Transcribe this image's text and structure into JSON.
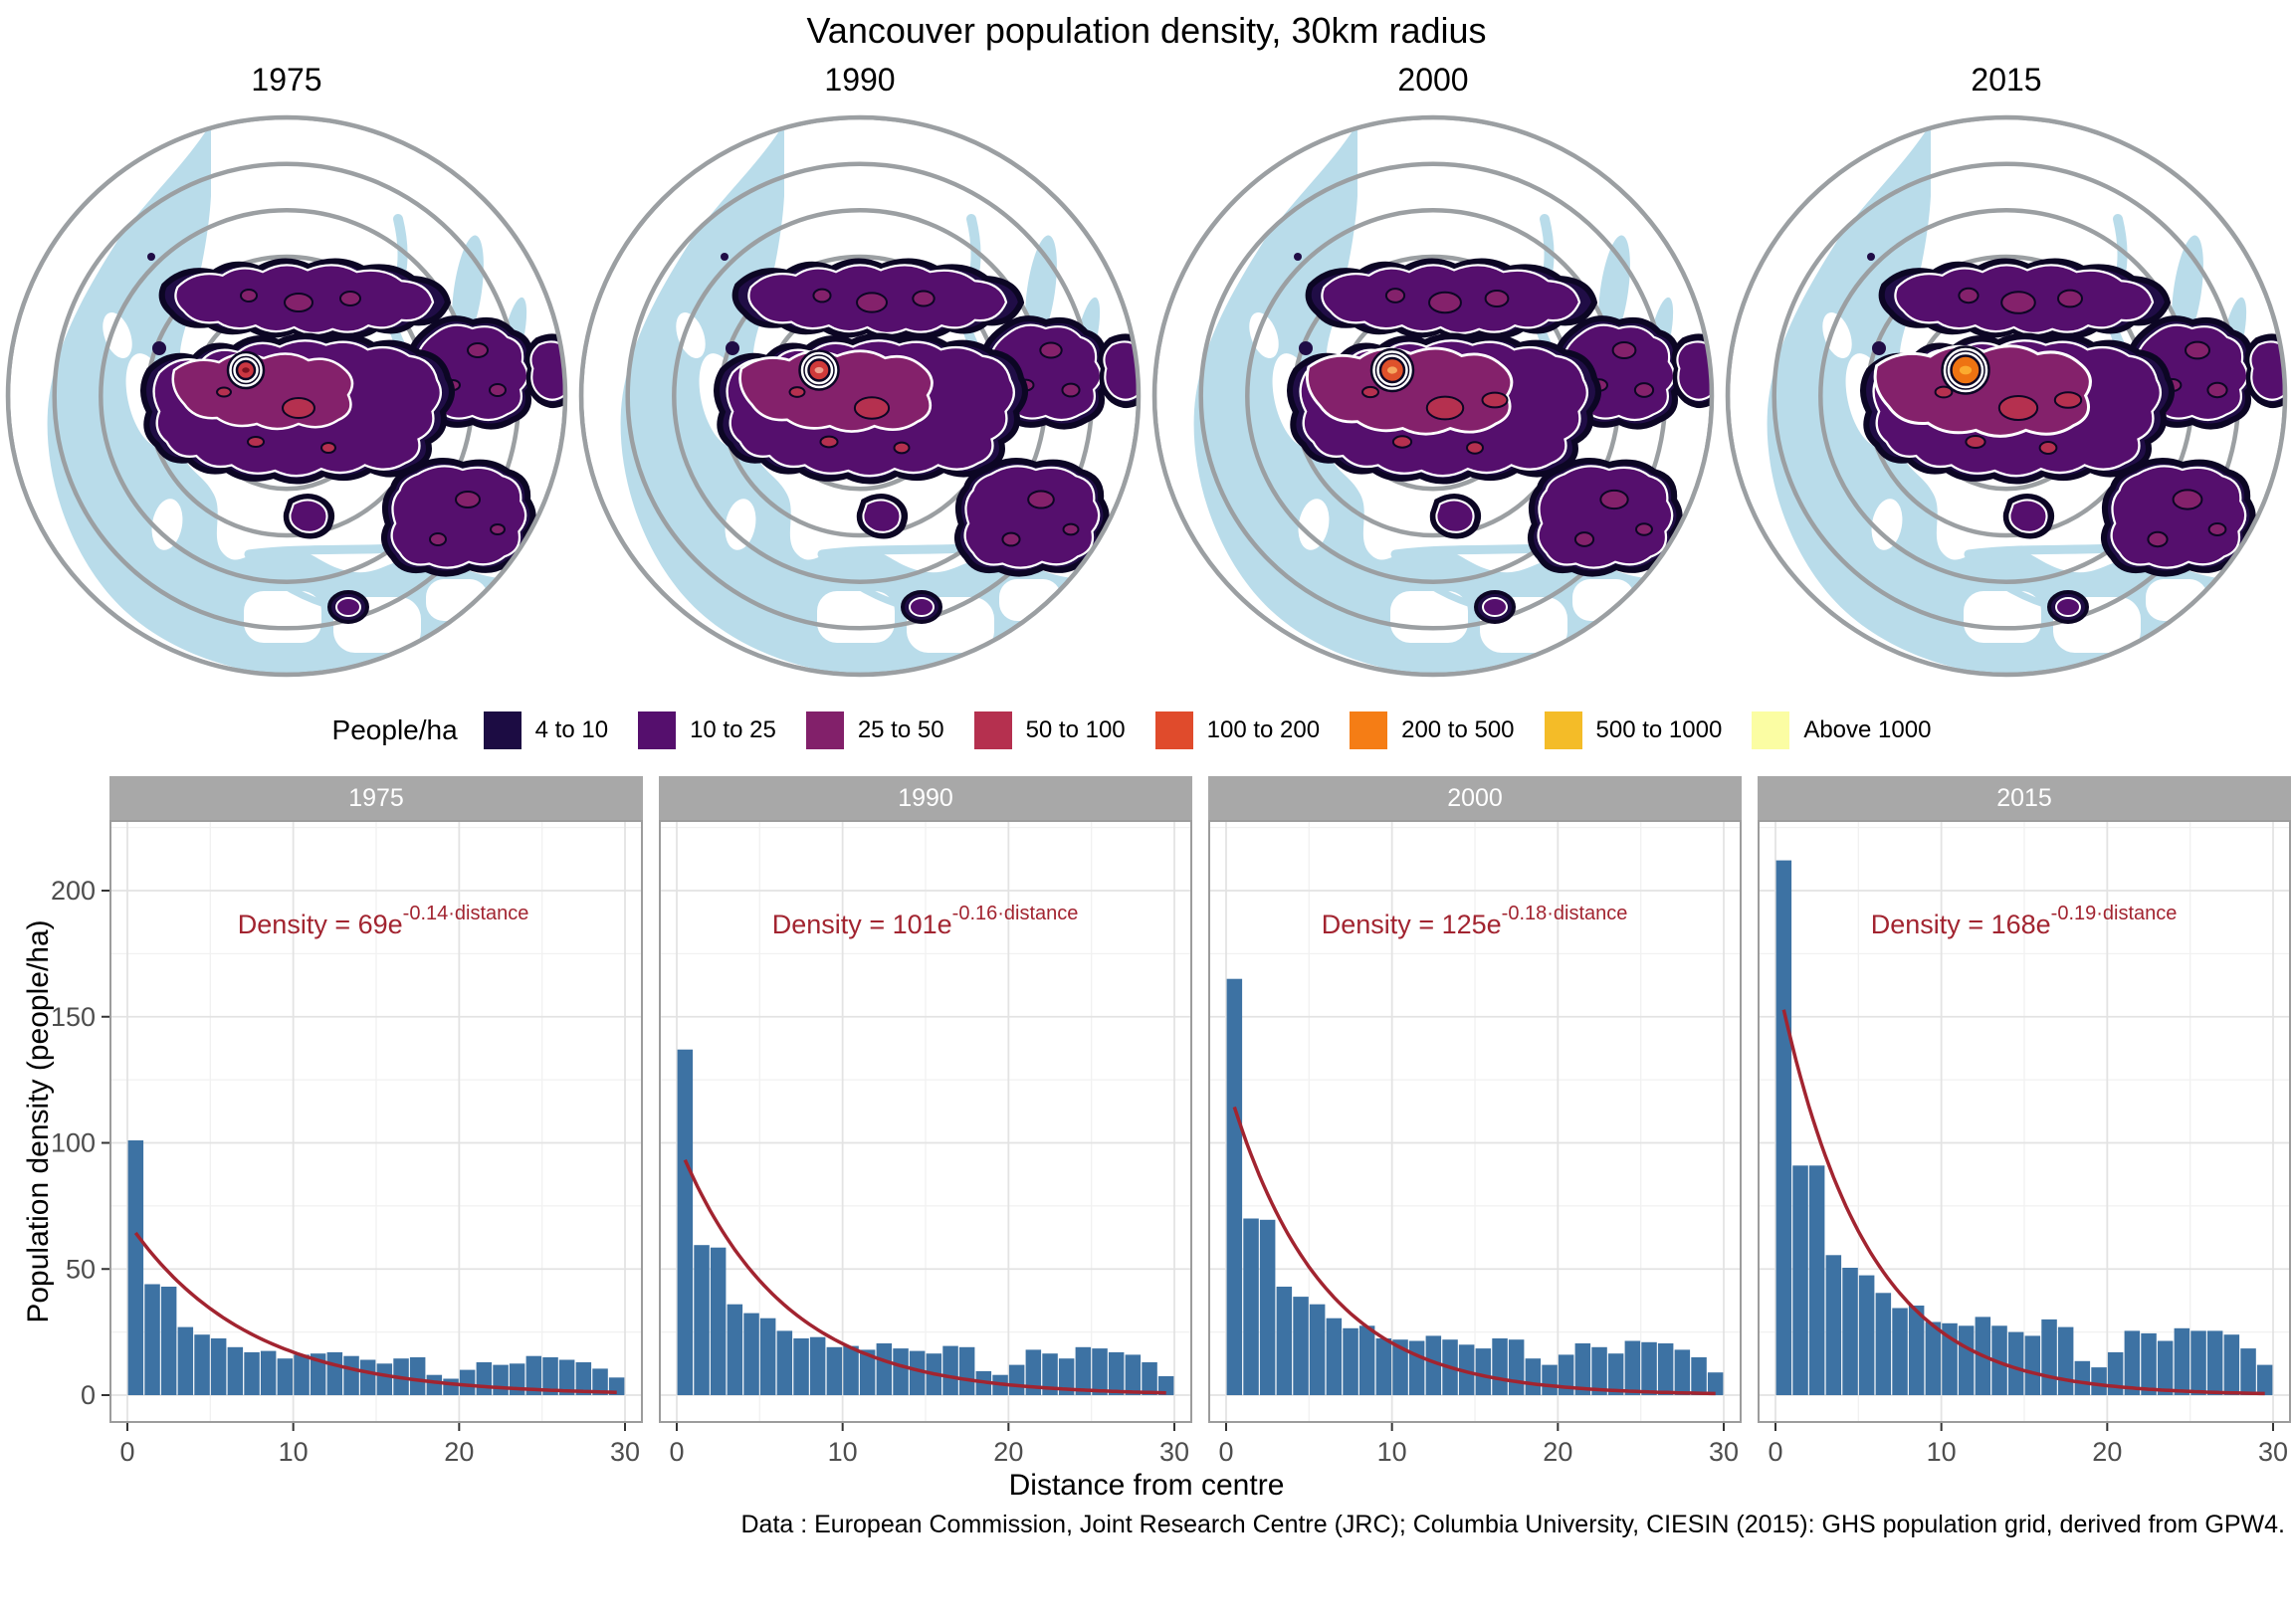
{
  "title": "Vancouver population density, 30km radius",
  "maps": {
    "years": [
      {
        "label": "1975",
        "hotspot": "#cb3742",
        "hotspot_inner": "#7c1220",
        "hotspot_r": 9,
        "spread": 1.0
      },
      {
        "label": "1990",
        "hotspot": "#d03a3a",
        "hotspot_inner": "#eda08f",
        "hotspot_r": 10.5,
        "spread": 1.07
      },
      {
        "label": "2000",
        "hotspot": "#df512b",
        "hotspot_inner": "#f5a75f",
        "hotspot_r": 12,
        "spread": 1.14
      },
      {
        "label": "2015",
        "hotspot": "#ee7312",
        "hotspot_inner": "#fbab2f",
        "hotspot_r": 14.5,
        "spread": 1.2
      }
    ]
  },
  "legend": {
    "title": "People/ha",
    "items": [
      {
        "label": "4 to 10",
        "color": "#1c0c43"
      },
      {
        "label": "10 to 25",
        "color": "#550f6d"
      },
      {
        "label": "25 to 50",
        "color": "#82206a"
      },
      {
        "label": "50 to 100",
        "color": "#b5304f"
      },
      {
        "label": "100 to 200",
        "color": "#e04b2c"
      },
      {
        "label": "200 to 500",
        "color": "#f57d15"
      },
      {
        "label": "500 to 1000",
        "color": "#f4bc28"
      },
      {
        "label": "Above 1000",
        "color": "#fbfda3"
      }
    ]
  },
  "chart_data": {
    "type": "bar",
    "title": "Vancouver population density, 30km radius",
    "xlabel": "Distance from centre",
    "ylabel": "Population density (people/ha)",
    "x_ticks": [
      0,
      10,
      20,
      30
    ],
    "y_ticks": [
      0,
      50,
      100,
      150,
      200
    ],
    "ylim": [
      0,
      225
    ],
    "xlim": [
      0,
      30
    ],
    "x_start": 0.5,
    "x_step": 1,
    "bar_width": 0.93,
    "facets": [
      {
        "label": "1975",
        "fit_a": 69,
        "fit_b": 0.14,
        "equation": "Density = 69e",
        "equation_exp": "-0.14·distance",
        "values": [
          101,
          44,
          43,
          27,
          24,
          22.5,
          19,
          17,
          17.5,
          14.5,
          16,
          16.5,
          17,
          15.5,
          14,
          12.5,
          14.5,
          15,
          8,
          6.5,
          10,
          13,
          12,
          12.5,
          15.5,
          15,
          14,
          13,
          10.5,
          7
        ]
      },
      {
        "label": "1990",
        "fit_a": 101,
        "fit_b": 0.16,
        "equation": "Density = 101e",
        "equation_exp": "-0.16·distance",
        "values": [
          137,
          59.5,
          58.5,
          36,
          32.5,
          30.5,
          25.5,
          22.5,
          23,
          19,
          19.5,
          18,
          20.5,
          18.5,
          17.5,
          16.5,
          19.5,
          19,
          9.5,
          8,
          12,
          18,
          16.5,
          14.5,
          19,
          18.5,
          17,
          16,
          13,
          7.5
        ]
      },
      {
        "label": "2000",
        "fit_a": 125,
        "fit_b": 0.18,
        "equation": "Density = 125e",
        "equation_exp": "-0.18·distance",
        "values": [
          165,
          70,
          69.5,
          43,
          39,
          36,
          30.5,
          26.5,
          27.5,
          22.5,
          22,
          21.5,
          23.5,
          22,
          20,
          18.5,
          22.5,
          22,
          14.5,
          12,
          16,
          20.5,
          19,
          16.5,
          21.5,
          21,
          20.5,
          18,
          15,
          9
        ]
      },
      {
        "label": "2015",
        "fit_a": 168,
        "fit_b": 0.19,
        "equation": "Density = 168e",
        "equation_exp": "-0.19·distance",
        "values": [
          212,
          91,
          91,
          55.5,
          50.5,
          47.5,
          40.5,
          34.5,
          35.5,
          29,
          28.5,
          27.5,
          31,
          27.5,
          25,
          23.5,
          30,
          27,
          13.5,
          11,
          17,
          25.5,
          24.5,
          21.5,
          26.5,
          25.5,
          25.5,
          24,
          18.5,
          12
        ]
      }
    ]
  },
  "footer": "Data : European Commission, Joint Research Centre (JRC); Columbia University, CIESIN (2015): GHS population grid, derived from GPW4.",
  "colors": {
    "bar": "#3d72a3",
    "fit_curve": "#a22430",
    "equation_text": "#a22430",
    "strip_bg": "#a8a8a8",
    "strip_text": "#ffffff",
    "grid_major": "#e3e3e3",
    "grid_minor": "#f1f1f1",
    "panel_border": "#9c9c9c",
    "tick_label": "#4d4d4d",
    "water": "#b9dcea",
    "ring": "#9b9fa2",
    "blob_navy": "#200d46",
    "blob_outline": "#0c0624",
    "blob_purple": "#550f6d",
    "blob_magenta": "#84216b",
    "blob_crimson": "#b5304f"
  }
}
